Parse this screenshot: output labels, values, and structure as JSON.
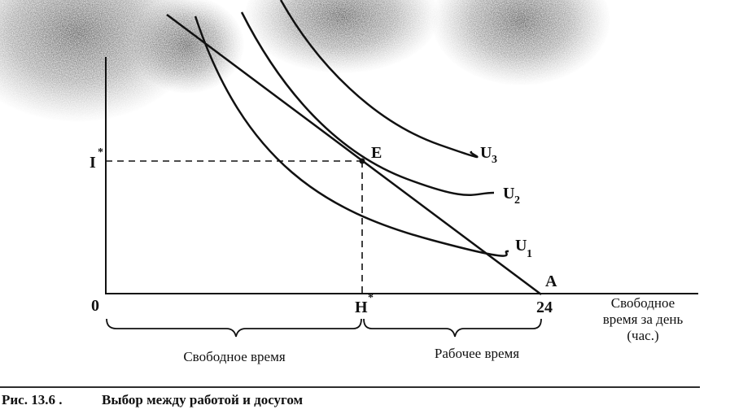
{
  "figure": {
    "point_labels": {
      "origin": "0",
      "income": "I",
      "income_star": "*",
      "hours": "H",
      "hours_star": "*",
      "equilibrium": "E",
      "endpoint": "A",
      "max_hours": "24"
    },
    "curves": {
      "u1": "U",
      "u1_sub": "1",
      "u2": "U",
      "u2_sub": "2",
      "u3": "U",
      "u3_sub": "3"
    },
    "axis": {
      "x_label_line1": "Свободное",
      "x_label_line2": "время за день",
      "x_label_line3": "(час.)"
    },
    "braces": {
      "leisure": "Свободное время",
      "work": "Рабочее время"
    },
    "caption": {
      "number": "Рис. 13.6 .",
      "text": "Выбор между работой и досугом"
    },
    "colors": {
      "ink": "#111111",
      "smudge": "#2a2a2a",
      "background": "#ffffff"
    }
  }
}
